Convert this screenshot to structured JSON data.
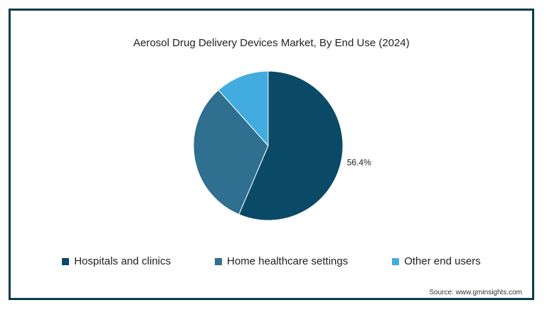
{
  "chart_data": {
    "type": "pie",
    "title": "Aerosol Drug Delivery Devices Market, By End Use (2024)",
    "categories": [
      "Hospitals and clinics",
      "Home healthcare settings",
      "Other end users"
    ],
    "values": [
      56.4,
      32.0,
      11.6
    ],
    "colors": [
      "#0b4a66",
      "#2f6f8f",
      "#42ace0"
    ],
    "data_labels": [
      "56.4%",
      "",
      ""
    ],
    "legend_position": "bottom",
    "start_angle": "12 o'clock",
    "direction": "clockwise"
  },
  "source": "Source: www.gminsights.com"
}
